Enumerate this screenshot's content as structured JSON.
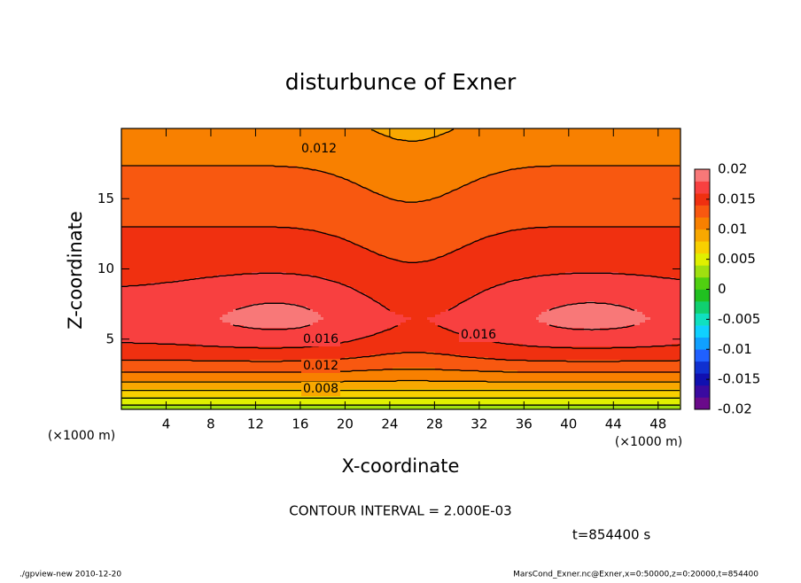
{
  "chart_data": {
    "type": "contour",
    "title": "disturbunce of Exner",
    "x_label": "X-coordinate",
    "y_label": "Z-coordinate",
    "x_unit": "(×1000 m)",
    "xlim": [
      0,
      50
    ],
    "ylim": [
      0,
      20
    ],
    "xticks": [
      4,
      8,
      12,
      16,
      20,
      24,
      28,
      32,
      36,
      40,
      44,
      48
    ],
    "yticks": [
      5,
      10,
      15
    ],
    "contour_interval": {
      "value": 0.002,
      "label": "CONTOUR INTERVAL = 2.000E-03"
    },
    "contour_labels": [
      0.012,
      0.016,
      0.016,
      0.012,
      0.008
    ],
    "colorbar": {
      "lim": [
        -0.02,
        0.02
      ],
      "ticks": [
        0.02,
        0.015,
        0.01,
        0.005,
        0,
        -0.005,
        -0.01,
        -0.015,
        -0.02
      ],
      "colors": [
        "#6a0a8a",
        "#3a0aa0",
        "#1010b0",
        "#1030d0",
        "#2060ff",
        "#10a0ff",
        "#10d0ff",
        "#10e0c0",
        "#10d070",
        "#20c020",
        "#50d010",
        "#a0e010",
        "#e0f000",
        "#f8d000",
        "#f8a800",
        "#f88000",
        "#f85810",
        "#f03010",
        "#f84040",
        "#f87878"
      ]
    },
    "time_label": "t=854400 s",
    "footer_left": "./gpview-new  2010-12-20",
    "footer_right": "MarsCond_Exner.nc@Exner,x=0:50000,z=0:20000,t=854400"
  }
}
